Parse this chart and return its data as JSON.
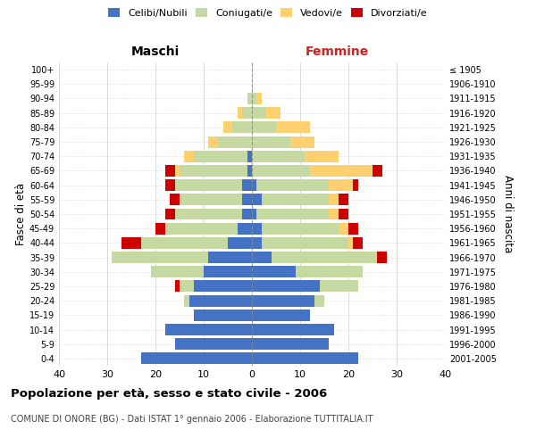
{
  "age_groups": [
    "0-4",
    "5-9",
    "10-14",
    "15-19",
    "20-24",
    "25-29",
    "30-34",
    "35-39",
    "40-44",
    "45-49",
    "50-54",
    "55-59",
    "60-64",
    "65-69",
    "70-74",
    "75-79",
    "80-84",
    "85-89",
    "90-94",
    "95-99",
    "100+"
  ],
  "birth_years": [
    "2001-2005",
    "1996-2000",
    "1991-1995",
    "1986-1990",
    "1981-1985",
    "1976-1980",
    "1971-1975",
    "1966-1970",
    "1961-1965",
    "1956-1960",
    "1951-1955",
    "1946-1950",
    "1941-1945",
    "1936-1940",
    "1931-1935",
    "1926-1930",
    "1921-1925",
    "1916-1920",
    "1911-1915",
    "1906-1910",
    "≤ 1905"
  ],
  "colors": {
    "celibi_nubili": "#4472C4",
    "coniugati": "#C5D9A1",
    "vedovi": "#FFD070",
    "divorziati": "#CC0000"
  },
  "male_celibi": [
    23,
    16,
    18,
    12,
    13,
    12,
    10,
    9,
    5,
    3,
    2,
    2,
    2,
    1,
    1,
    0,
    0,
    0,
    0,
    0,
    0
  ],
  "male_coniugati": [
    0,
    0,
    0,
    0,
    1,
    3,
    11,
    20,
    18,
    15,
    14,
    13,
    14,
    14,
    11,
    7,
    4,
    2,
    1,
    0,
    0
  ],
  "male_vedovi": [
    0,
    0,
    0,
    0,
    0,
    0,
    0,
    0,
    0,
    0,
    0,
    0,
    0,
    1,
    2,
    2,
    2,
    1,
    0,
    0,
    0
  ],
  "male_divorziati": [
    0,
    0,
    0,
    0,
    0,
    1,
    0,
    0,
    4,
    2,
    2,
    2,
    2,
    2,
    0,
    0,
    0,
    0,
    0,
    0,
    0
  ],
  "female_nubili": [
    22,
    16,
    17,
    12,
    13,
    14,
    9,
    4,
    2,
    2,
    1,
    2,
    1,
    0,
    0,
    0,
    0,
    0,
    0,
    0,
    0
  ],
  "female_coniugate": [
    0,
    0,
    0,
    0,
    2,
    8,
    14,
    22,
    18,
    16,
    15,
    14,
    15,
    12,
    11,
    8,
    5,
    3,
    1,
    0,
    0
  ],
  "female_vedove": [
    0,
    0,
    0,
    0,
    0,
    0,
    0,
    0,
    1,
    2,
    2,
    2,
    5,
    13,
    7,
    5,
    7,
    3,
    1,
    0,
    0
  ],
  "female_divorziate": [
    0,
    0,
    0,
    0,
    0,
    0,
    0,
    2,
    2,
    2,
    2,
    2,
    1,
    2,
    0,
    0,
    0,
    0,
    0,
    0,
    0
  ],
  "xlim": 40,
  "title_main": "Popolazione per età, sesso e stato civile - 2006",
  "title_sub": "COMUNE DI ONORE (BG) - Dati ISTAT 1° gennaio 2006 - Elaborazione TUTTITALIA.IT",
  "legend_labels": [
    "Celibi/Nubili",
    "Coniugati/e",
    "Vedovi/e",
    "Divorziati/e"
  ],
  "ylabel_left": "Fasce di età",
  "ylabel_right": "Anni di nascita",
  "header_left": "Maschi",
  "header_right": "Femmine"
}
